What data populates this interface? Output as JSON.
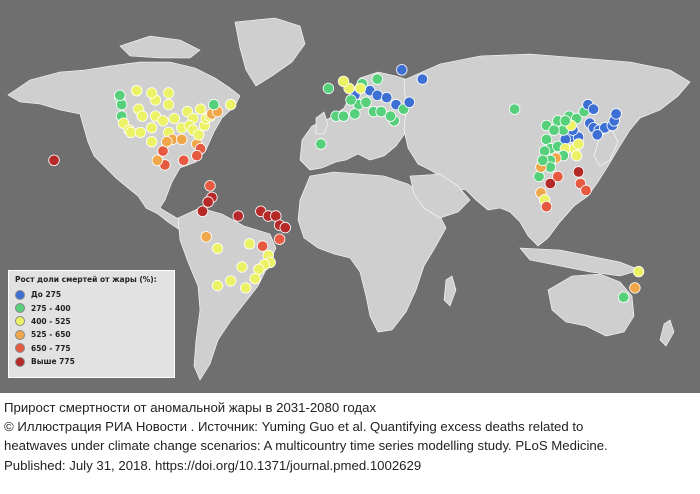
{
  "legend": {
    "title": "Рост доли смертей от жары (%):",
    "items": [
      {
        "label": "До 275",
        "color": "#3d6fd4"
      },
      {
        "label": "275 - 400",
        "color": "#56d07a"
      },
      {
        "label": "400 - 525",
        "color": "#ecf265"
      },
      {
        "label": "525 - 650",
        "color": "#f0a64a"
      },
      {
        "label": "650 - 775",
        "color": "#e55a40"
      },
      {
        "label": "Выше 775",
        "color": "#b52a28"
      }
    ]
  },
  "caption": {
    "line1": "Прирост смертности от аномальной жары в 2031-2080 годах",
    "line2": "© Иллюстрация РИА Новости . Источник: Yuming Guo et al. Quantifying excess deaths related to",
    "line3": "heatwaves under climate change scenarios: A multicountry time series modelling study. PLoS Medicine.",
    "line4": "Published: July 31, 2018. https://doi.org/10.1371/journal.pmed.1002629"
  },
  "colors": {
    "ocean": "#6f6f6f",
    "land": "#cfcfcf"
  },
  "locations": [
    {
      "lon": 27,
      "lat": 60,
      "cat": 0
    },
    {
      "lon": 14,
      "lat": 56,
      "cat": 1
    },
    {
      "lon": 10,
      "lat": 51,
      "cat": 0
    },
    {
      "lon": 2,
      "lat": 49,
      "cat": 0
    },
    {
      "lon": 14,
      "lat": 49,
      "cat": 0
    },
    {
      "lon": 19,
      "lat": 48,
      "cat": 0
    },
    {
      "lon": 24,
      "lat": 45,
      "cat": 0
    },
    {
      "lon": 4,
      "lat": 45,
      "cat": 1
    },
    {
      "lon": -8,
      "lat": 40,
      "cat": 1
    },
    {
      "lon": -4,
      "lat": 40,
      "cat": 1
    },
    {
      "lon": 12,
      "lat": 42,
      "cat": 1
    },
    {
      "lon": 2,
      "lat": 41,
      "cat": 1
    },
    {
      "lon": -1,
      "lat": 52,
      "cat": 2
    },
    {
      "lon": -4,
      "lat": 55,
      "cat": 2
    },
    {
      "lon": 6,
      "lat": 54,
      "cat": 1
    },
    {
      "lon": 5,
      "lat": 52,
      "cat": 2
    },
    {
      "lon": 0,
      "lat": 47,
      "cat": 1
    },
    {
      "lon": 8,
      "lat": 46,
      "cat": 1
    },
    {
      "lon": 16,
      "lat": 42,
      "cat": 1
    },
    {
      "lon": 23,
      "lat": 38,
      "cat": 1
    },
    {
      "lon": 21,
      "lat": 40,
      "cat": 1
    },
    {
      "lon": 28,
      "lat": 43,
      "cat": 1
    },
    {
      "lon": 31,
      "lat": 46,
      "cat": 0
    },
    {
      "lon": -12,
      "lat": 52,
      "cat": 1
    },
    {
      "lon": -16,
      "lat": 28,
      "cat": 1
    },
    {
      "lon": 38,
      "lat": 56,
      "cat": 0
    },
    {
      "lon": 87,
      "lat": 43,
      "cat": 1
    },
    {
      "lon": 104,
      "lat": 36,
      "cat": 1
    },
    {
      "lon": 110,
      "lat": 38,
      "cat": 1
    },
    {
      "lon": 116,
      "lat": 40,
      "cat": 1
    },
    {
      "lon": 120,
      "lat": 39,
      "cat": 1
    },
    {
      "lon": 124,
      "lat": 42,
      "cat": 1
    },
    {
      "lon": 126,
      "lat": 45,
      "cat": 0
    },
    {
      "lon": 129,
      "lat": 43,
      "cat": 0
    },
    {
      "lon": 127,
      "lat": 37,
      "cat": 0
    },
    {
      "lon": 129,
      "lat": 35,
      "cat": 0
    },
    {
      "lon": 132,
      "lat": 34,
      "cat": 0
    },
    {
      "lon": 135,
      "lat": 35,
      "cat": 0
    },
    {
      "lon": 139,
      "lat": 36,
      "cat": 0
    },
    {
      "lon": 140,
      "lat": 38,
      "cat": 0
    },
    {
      "lon": 141,
      "lat": 41,
      "cat": 0
    },
    {
      "lon": 131,
      "lat": 32,
      "cat": 0
    },
    {
      "lon": 117,
      "lat": 31,
      "cat": 0
    },
    {
      "lon": 121,
      "lat": 31,
      "cat": 0
    },
    {
      "lon": 114,
      "lat": 30,
      "cat": 0
    },
    {
      "lon": 118,
      "lat": 34,
      "cat": 0
    },
    {
      "lon": 113,
      "lat": 34,
      "cat": 1
    },
    {
      "lon": 108,
      "lat": 34,
      "cat": 1
    },
    {
      "lon": 104,
      "lat": 30,
      "cat": 1
    },
    {
      "lon": 106,
      "lat": 26,
      "cat": 1
    },
    {
      "lon": 110,
      "lat": 27,
      "cat": 1
    },
    {
      "lon": 114,
      "lat": 26,
      "cat": 2
    },
    {
      "lon": 119,
      "lat": 26,
      "cat": 2
    },
    {
      "lon": 121,
      "lat": 28,
      "cat": 2
    },
    {
      "lon": 113,
      "lat": 23,
      "cat": 1
    },
    {
      "lon": 120,
      "lat": 23,
      "cat": 2
    },
    {
      "lon": 117,
      "lat": 36,
      "cat": 2
    },
    {
      "lon": 114,
      "lat": 38,
      "cat": 1
    },
    {
      "lon": 103,
      "lat": 25,
      "cat": 1
    },
    {
      "lon": 109,
      "lat": 22,
      "cat": 3
    },
    {
      "lon": 106,
      "lat": 21,
      "cat": 1
    },
    {
      "lon": 106,
      "lat": 18,
      "cat": 1
    },
    {
      "lon": 100,
      "lat": 14,
      "cat": 1
    },
    {
      "lon": 101,
      "lat": 18,
      "cat": 3
    },
    {
      "lon": 106,
      "lat": 11,
      "cat": 5
    },
    {
      "lon": 101,
      "lat": 7,
      "cat": 3
    },
    {
      "lon": 103,
      "lat": 4,
      "cat": 2
    },
    {
      "lon": 104,
      "lat": 1,
      "cat": 4
    },
    {
      "lon": 121,
      "lat": 16,
      "cat": 5
    },
    {
      "lon": 122,
      "lat": 11,
      "cat": 4
    },
    {
      "lon": 125,
      "lat": 8,
      "cat": 4
    },
    {
      "lon": 110,
      "lat": 14,
      "cat": 4
    },
    {
      "lon": 102,
      "lat": 21,
      "cat": 1
    },
    {
      "lon": -123,
      "lat": 48,
      "cat": 1
    },
    {
      "lon": -122,
      "lat": 45,
      "cat": 1
    },
    {
      "lon": -122,
      "lat": 40,
      "cat": 1
    },
    {
      "lon": -121,
      "lat": 37,
      "cat": 2
    },
    {
      "lon": -118,
      "lat": 34,
      "cat": 2
    },
    {
      "lon": -117,
      "lat": 33,
      "cat": 2
    },
    {
      "lon": -113,
      "lat": 43,
      "cat": 2
    },
    {
      "lon": -111,
      "lat": 40,
      "cat": 2
    },
    {
      "lon": -112,
      "lat": 33,
      "cat": 2
    },
    {
      "lon": -106,
      "lat": 35,
      "cat": 2
    },
    {
      "lon": -104,
      "lat": 40,
      "cat": 2
    },
    {
      "lon": -100,
      "lat": 38,
      "cat": 2
    },
    {
      "lon": -104,
      "lat": 47,
      "cat": 2
    },
    {
      "lon": -97,
      "lat": 45,
      "cat": 2
    },
    {
      "lon": -94,
      "lat": 39,
      "cat": 2
    },
    {
      "lon": -97,
      "lat": 33,
      "cat": 2
    },
    {
      "lon": -95,
      "lat": 30,
      "cat": 3
    },
    {
      "lon": -90,
      "lat": 30,
      "cat": 3
    },
    {
      "lon": -90,
      "lat": 35,
      "cat": 2
    },
    {
      "lon": -87,
      "lat": 42,
      "cat": 2
    },
    {
      "lon": -84,
      "lat": 39,
      "cat": 2
    },
    {
      "lon": -86,
      "lat": 36,
      "cat": 2
    },
    {
      "lon": -84,
      "lat": 34,
      "cat": 2
    },
    {
      "lon": -82,
      "lat": 28,
      "cat": 3
    },
    {
      "lon": -80,
      "lat": 26,
      "cat": 4
    },
    {
      "lon": -81,
      "lat": 32,
      "cat": 2
    },
    {
      "lon": -78,
      "lat": 36,
      "cat": 2
    },
    {
      "lon": -77,
      "lat": 39,
      "cat": 2
    },
    {
      "lon": -75,
      "lat": 40,
      "cat": 2
    },
    {
      "lon": -74,
      "lat": 41,
      "cat": 3
    },
    {
      "lon": -71,
      "lat": 42,
      "cat": 3
    },
    {
      "lon": -80,
      "lat": 43,
      "cat": 2
    },
    {
      "lon": -73,
      "lat": 45,
      "cat": 1
    },
    {
      "lon": -64,
      "lat": 45,
      "cat": 2
    },
    {
      "lon": -114,
      "lat": 51,
      "cat": 2
    },
    {
      "lon": -106,
      "lat": 50,
      "cat": 2
    },
    {
      "lon": -97,
      "lat": 50,
      "cat": 2
    },
    {
      "lon": -123,
      "lat": 49,
      "cat": 1
    },
    {
      "lon": -99,
      "lat": 19,
      "cat": 4
    },
    {
      "lon": -103,
      "lat": 21,
      "cat": 3
    },
    {
      "lon": -100,
      "lat": 25,
      "cat": 4
    },
    {
      "lon": -89,
      "lat": 21,
      "cat": 4
    },
    {
      "lon": -98,
      "lat": 29,
      "cat": 3
    },
    {
      "lon": -106,
      "lat": 29,
      "cat": 2
    },
    {
      "lon": -82,
      "lat": 23,
      "cat": 4
    },
    {
      "lon": -158,
      "lat": 21,
      "cat": 5
    },
    {
      "lon": -75,
      "lat": 10,
      "cat": 4
    },
    {
      "lon": -74,
      "lat": 5,
      "cat": 5
    },
    {
      "lon": -76,
      "lat": 3,
      "cat": 5
    },
    {
      "lon": -79,
      "lat": -1,
      "cat": 5
    },
    {
      "lon": -77,
      "lat": -12,
      "cat": 3
    },
    {
      "lon": -71,
      "lat": -17,
      "cat": 2
    },
    {
      "lon": -60,
      "lat": -3,
      "cat": 5
    },
    {
      "lon": -48,
      "lat": -1,
      "cat": 5
    },
    {
      "lon": -44,
      "lat": -3,
      "cat": 5
    },
    {
      "lon": -40,
      "lat": -3,
      "cat": 5
    },
    {
      "lon": -38,
      "lat": -7,
      "cat": 5
    },
    {
      "lon": -35,
      "lat": -8,
      "cat": 5
    },
    {
      "lon": -38,
      "lat": -13,
      "cat": 4
    },
    {
      "lon": -47,
      "lat": -16,
      "cat": 4
    },
    {
      "lon": -54,
      "lat": -15,
      "cat": 2
    },
    {
      "lon": -44,
      "lat": -20,
      "cat": 2
    },
    {
      "lon": -43,
      "lat": -23,
      "cat": 2
    },
    {
      "lon": -46,
      "lat": -24,
      "cat": 2
    },
    {
      "lon": -49,
      "lat": -26,
      "cat": 2
    },
    {
      "lon": -51,
      "lat": -30,
      "cat": 2
    },
    {
      "lon": -58,
      "lat": -25,
      "cat": 2
    },
    {
      "lon": -56,
      "lat": -34,
      "cat": 2
    },
    {
      "lon": -71,
      "lat": -33,
      "cat": 2
    },
    {
      "lon": -64,
      "lat": -31,
      "cat": 2
    },
    {
      "lon": 153,
      "lat": -27,
      "cat": 2
    },
    {
      "lon": 151,
      "lat": -34,
      "cat": 3
    },
    {
      "lon": 145,
      "lat": -38,
      "cat": 1
    }
  ]
}
